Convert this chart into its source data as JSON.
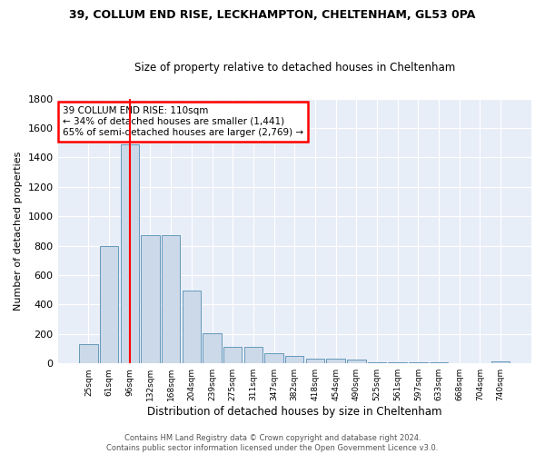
{
  "title1": "39, COLLUM END RISE, LECKHAMPTON, CHELTENHAM, GL53 0PA",
  "title2": "Size of property relative to detached houses in Cheltenham",
  "xlabel": "Distribution of detached houses by size in Cheltenham",
  "ylabel": "Number of detached properties",
  "categories": [
    "25sqm",
    "61sqm",
    "96sqm",
    "132sqm",
    "168sqm",
    "204sqm",
    "239sqm",
    "275sqm",
    "311sqm",
    "347sqm",
    "382sqm",
    "418sqm",
    "454sqm",
    "490sqm",
    "525sqm",
    "561sqm",
    "597sqm",
    "633sqm",
    "668sqm",
    "704sqm",
    "740sqm"
  ],
  "values": [
    130,
    800,
    1490,
    870,
    870,
    495,
    205,
    110,
    110,
    70,
    50,
    35,
    30,
    25,
    10,
    5,
    5,
    5,
    3,
    3,
    15
  ],
  "bar_color": "#ccd9e8",
  "bar_edge_color": "#6699bb",
  "red_line_x": 2.0,
  "annotation_text": "39 COLLUM END RISE: 110sqm\n← 34% of detached houses are smaller (1,441)\n65% of semi-detached houses are larger (2,769) →",
  "annotation_box_color": "white",
  "annotation_box_edge": "red",
  "footer1": "Contains HM Land Registry data © Crown copyright and database right 2024.",
  "footer2": "Contains public sector information licensed under the Open Government Licence v3.0.",
  "bg_color": "#e8eef8",
  "ylim": [
    0,
    1800
  ],
  "yticks": [
    0,
    200,
    400,
    600,
    800,
    1000,
    1200,
    1400,
    1600,
    1800
  ]
}
